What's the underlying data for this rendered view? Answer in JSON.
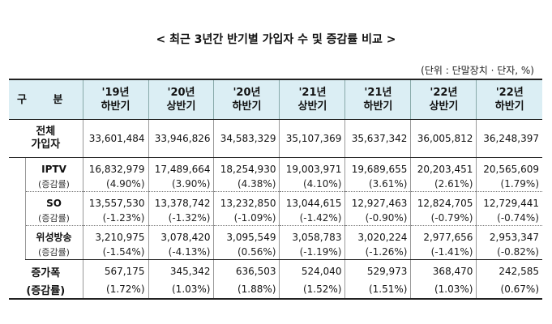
{
  "title": "< 최근 3년간 반기별 가입자 수 및 증감률 비교 >",
  "unit": "(단위 : 단말장치 · 단자, %)",
  "header": {
    "label": "구 분",
    "columns": [
      {
        "year": "'19년",
        "half": "하반기"
      },
      {
        "year": "'20년",
        "half": "상반기"
      },
      {
        "year": "'20년",
        "half": "하반기"
      },
      {
        "year": "'21년",
        "half": "상반기"
      },
      {
        "year": "'21년",
        "half": "하반기"
      },
      {
        "year": "'22년",
        "half": "상반기"
      },
      {
        "year": "'22년",
        "half": "하반기"
      }
    ]
  },
  "total": {
    "label_line1": "전체",
    "label_line2": "가입자",
    "values": [
      "33,601,484",
      "33,946,826",
      "34,583,329",
      "35,107,369",
      "35,637,342",
      "36,005,812",
      "36,248,397"
    ]
  },
  "rows": [
    {
      "label": "IPTV",
      "sub_label": "(증감률)",
      "values": [
        "16,832,979",
        "17,489,664",
        "18,254,930",
        "19,003,971",
        "19,689,655",
        "20,203,451",
        "20,565,609"
      ],
      "rates": [
        "(4.90%)",
        "(3.90%)",
        "(4.38%)",
        "(4.10%)",
        "(3.61%)",
        "(2.61%)",
        "(1.79%)"
      ]
    },
    {
      "label": "SO",
      "sub_label": "(증감률)",
      "values": [
        "13,557,530",
        "13,378,742",
        "13,232,850",
        "13,044,615",
        "12,927,463",
        "12,824,705",
        "12,729,441"
      ],
      "rates": [
        "(-1.23%)",
        "(-1.32%)",
        "(-1.09%)",
        "(-1.42%)",
        "(-0.90%)",
        "(-0.79%)",
        "(-0.74%)"
      ]
    },
    {
      "label": "위성방송",
      "sub_label": "(증감률)",
      "values": [
        "3,210,975",
        "3,078,420",
        "3,095,549",
        "3,058,783",
        "3,020,224",
        "2,977,656",
        "2,953,347"
      ],
      "rates": [
        "(-1.54%)",
        "(-4.13%)",
        "(0.56%)",
        "(-1.19%)",
        "(-1.26%)",
        "(-1.41%)",
        "(-0.82%)"
      ]
    }
  ],
  "increase": {
    "label_line1": "증가폭",
    "label_line2": "(증감률)",
    "values": [
      "567,175",
      "345,342",
      "636,503",
      "524,040",
      "529,973",
      "368,470",
      "242,585"
    ],
    "rates": [
      "(1.72%)",
      "(1.03%)",
      "(1.88%)",
      "(1.52%)",
      "(1.51%)",
      "(1.03%)",
      "(0.67%)"
    ]
  },
  "colors": {
    "header_bg": "#dbeef4",
    "negative_rate": "#1f3fbf"
  }
}
